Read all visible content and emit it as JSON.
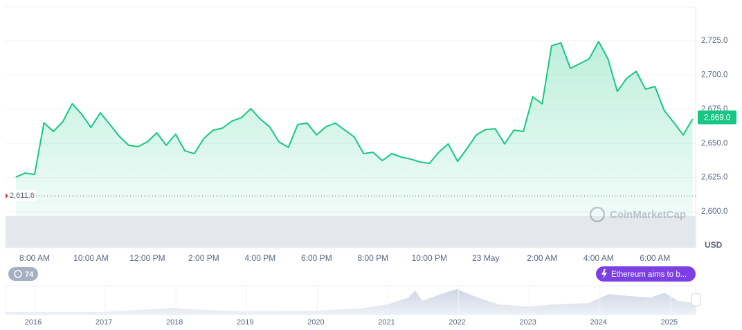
{
  "chart_data": {
    "type": "line",
    "categories": [
      null,
      null,
      "8:00 AM",
      null,
      null,
      null,
      null,
      null,
      "10:00 AM",
      null,
      null,
      null,
      null,
      null,
      "12:00 PM",
      null,
      null,
      null,
      null,
      null,
      "2:00 PM",
      null,
      null,
      null,
      null,
      null,
      "4:00 PM",
      null,
      null,
      null,
      null,
      null,
      "6:00 PM",
      null,
      null,
      null,
      null,
      null,
      "8:00 PM",
      null,
      null,
      null,
      null,
      null,
      "10:00 PM",
      null,
      null,
      null,
      null,
      null,
      "23 May",
      null,
      null,
      null,
      null,
      null,
      "2:00 AM",
      null,
      null,
      null,
      null,
      null,
      "4:00 AM",
      null,
      null,
      null,
      null,
      null,
      "6:00 AM",
      null,
      null,
      null,
      null
    ],
    "series": [
      {
        "color": "#16c784",
        "values": [
          2625.3,
          2628.3,
          2627.3,
          2665.0,
          2658.7,
          2665.8,
          2679.0,
          2671.4,
          2661.7,
          2672.4,
          2663.8,
          2655.2,
          2648.6,
          2647.6,
          2651.1,
          2657.7,
          2648.6,
          2656.7,
          2644.5,
          2642.5,
          2653.6,
          2659.7,
          2661.2,
          2666.3,
          2668.8,
          2675.4,
          2667.8,
          2662.2,
          2651.1,
          2647.1,
          2663.8,
          2664.8,
          2656.2,
          2662.2,
          2664.8,
          2659.7,
          2654.7,
          2642.5,
          2643.5,
          2637.4,
          2642.5,
          2640.0,
          2638.5,
          2636.4,
          2635.4,
          2643.5,
          2649.6,
          2636.9,
          2646.1,
          2656.2,
          2660.2,
          2660.7,
          2649.6,
          2659.7,
          2658.7,
          2684.0,
          2678.9,
          2721.4,
          2723.5,
          2704.8,
          2708.3,
          2711.8,
          2724.5,
          2711.8,
          2688.0,
          2697.7,
          2702.7,
          2689.6,
          2691.6,
          2673.9,
          2665.3,
          2656.2,
          2667.8
        ]
      }
    ],
    "ylim": [
      2573.7,
      2749.8
    ],
    "yticks": [
      {
        "value": 2600,
        "label": "2,600.0"
      },
      {
        "value": 2625,
        "label": "2,625.0"
      },
      {
        "value": 2650,
        "label": "2,650.0"
      },
      {
        "value": 2675,
        "label": "2,675.0"
      },
      {
        "value": 2700,
        "label": "2,700.0"
      },
      {
        "value": 2725,
        "label": "2,725.0"
      }
    ],
    "grid": true,
    "reference_line": {
      "value": 2611.6,
      "label": "2,611.6"
    },
    "current_price": {
      "value": 2669.0,
      "label": "2,669.0"
    },
    "currency": "USD",
    "watermark": "CoinMarketCap"
  },
  "navigator": {
    "years": [
      "2016",
      "2017",
      "2018",
      "2019",
      "2020",
      "2021",
      "2022",
      "2023",
      "2024",
      "2025"
    ]
  },
  "ui": {
    "history_count": "74",
    "news": "Ethereum aims to b..."
  }
}
